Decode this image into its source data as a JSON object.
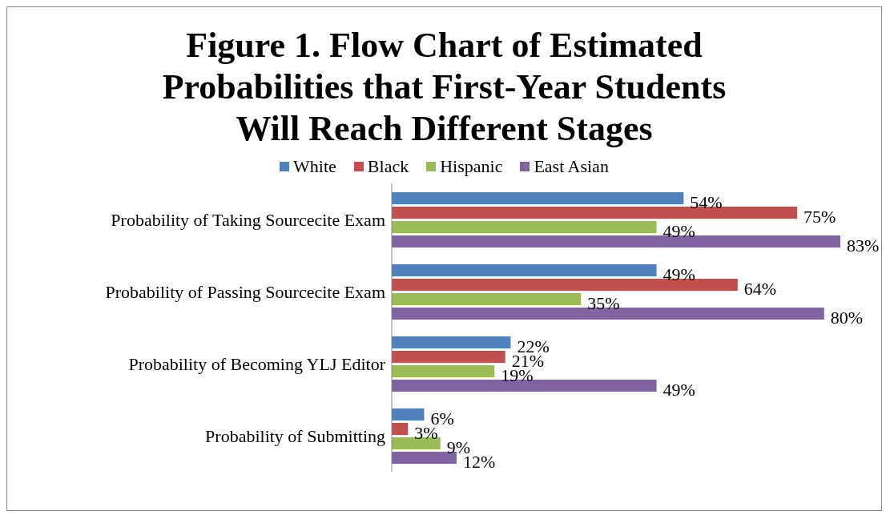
{
  "chart_data": {
    "type": "bar",
    "orientation": "horizontal",
    "title": "Figure 1. Flow Chart of Estimated Probabilities that First-Year Students Will Reach Different Stages",
    "categories": [
      "Probability of Taking Sourcecite Exam",
      "Probability of Passing Sourcecite Exam",
      "Probability of Becoming YLJ Editor",
      "Probability of Submitting"
    ],
    "series": [
      {
        "name": "White",
        "color": "#4f81bd",
        "values": [
          54,
          49,
          22,
          6
        ],
        "value_labels": [
          "54%",
          "49%",
          "22%",
          "6%"
        ]
      },
      {
        "name": "Black",
        "color": "#c0504d",
        "values": [
          75,
          64,
          21,
          3
        ],
        "value_labels": [
          "75%",
          "64%",
          "21%",
          "3%"
        ]
      },
      {
        "name": "Hispanic",
        "color": "#9bbb59",
        "values": [
          49,
          35,
          19,
          9
        ],
        "value_labels": [
          "49%",
          "35%",
          "19%",
          "9%"
        ]
      },
      {
        "name": "East Asian",
        "color": "#8064a2",
        "values": [
          83,
          80,
          49,
          12
        ],
        "value_labels": [
          "83%",
          "80%",
          "49%",
          "12%"
        ]
      }
    ],
    "legend": "top",
    "grid": false
  }
}
